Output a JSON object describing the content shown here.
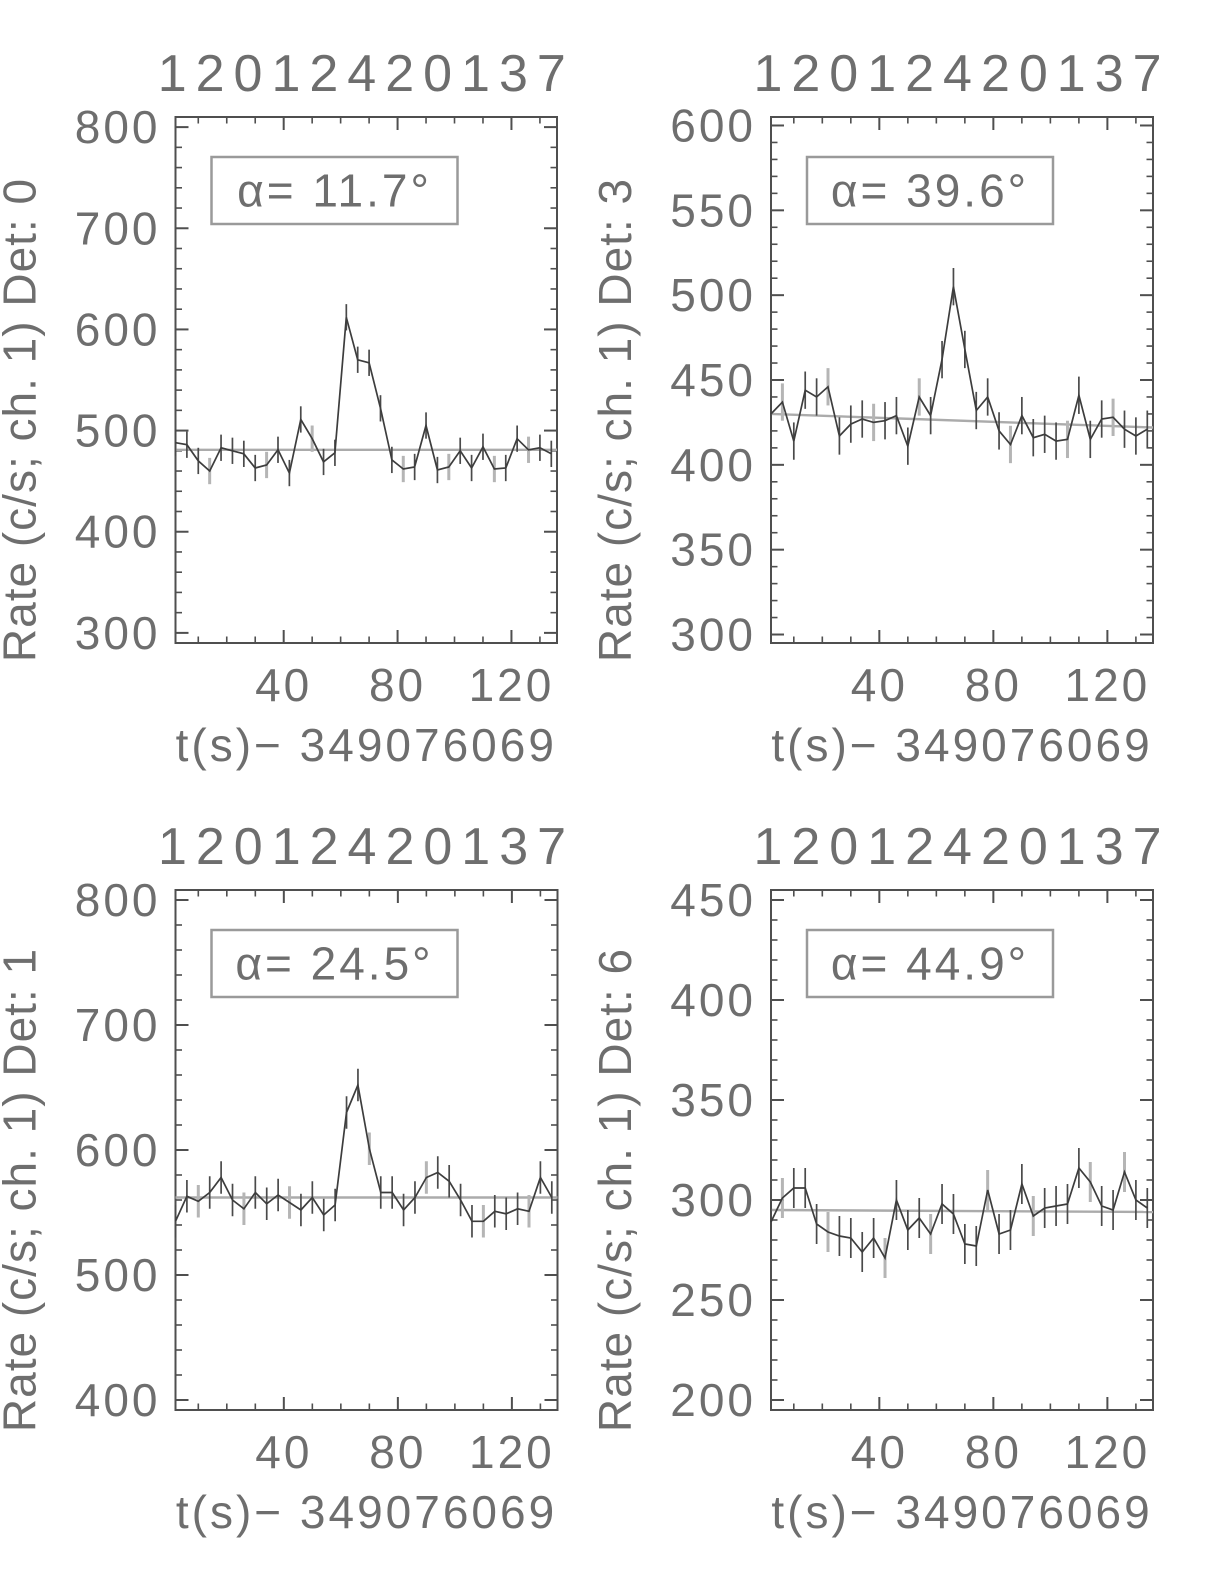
{
  "figure": {
    "background": "#ffffff",
    "description_colors": {
      "frame": "#4f4f4f",
      "tick": "#4f4f4f",
      "axis_text": "#6e6e6e",
      "title_text": "#747474",
      "data_line": "#3d3d3d",
      "error_bar": "#4a4a4a",
      "error_bar_gray": "#b5b5b5",
      "fit_line": "#ababab",
      "annotation_border": "#9a9a9a",
      "annotation_text": "#636363"
    }
  },
  "chart_data": [
    {
      "type": "line",
      "panel": "top-left",
      "title": "12012420137",
      "ylabel": "Rate (c/s; ch. 1) Det: 0",
      "xlabel": "t(s)−  349076069",
      "annotation": "α=  11.7°",
      "xlim": [
        2,
        136
      ],
      "ylim": [
        290,
        810
      ],
      "xticks": [
        40,
        80,
        120
      ],
      "xtick_labels": [
        "40",
        "80",
        "120"
      ],
      "yticks": [
        300,
        400,
        500,
        600,
        700,
        800
      ],
      "ytick_labels": [
        "300",
        "400",
        "500",
        "600",
        "700",
        "800"
      ],
      "x_minor_step": 10,
      "y_minor_step": 20,
      "grid": false,
      "x": [
        2,
        6,
        10,
        14,
        18,
        22,
        26,
        30,
        34,
        38,
        42,
        46,
        50,
        54,
        58,
        62,
        66,
        70,
        74,
        78,
        82,
        86,
        90,
        94,
        98,
        102,
        106,
        110,
        114,
        118,
        122,
        126,
        130,
        134
      ],
      "y": [
        488,
        486,
        470,
        460,
        483,
        480,
        477,
        463,
        466,
        481,
        458,
        511,
        492,
        469,
        478,
        612,
        570,
        567,
        522,
        471,
        462,
        464,
        505,
        461,
        464,
        480,
        463,
        484,
        462,
        463,
        492,
        481,
        483,
        477
      ],
      "yerr": 13,
      "gray_err_idx": [
        3,
        8,
        12,
        20,
        24,
        28,
        31
      ],
      "fit_line": {
        "x": [
          2,
          136
        ],
        "y": [
          481,
          481
        ]
      }
    },
    {
      "type": "line",
      "panel": "top-right",
      "title": "12012420137",
      "ylabel": "Rate (c/s; ch. 1) Det: 3",
      "xlabel": "t(s)−  349076069",
      "annotation": "α=  39.6°",
      "xlim": [
        2,
        136
      ],
      "ylim": [
        295,
        605
      ],
      "xticks": [
        40,
        80,
        120
      ],
      "xtick_labels": [
        "40",
        "80",
        "120"
      ],
      "yticks": [
        300,
        350,
        400,
        450,
        500,
        550,
        600
      ],
      "ytick_labels": [
        "300",
        "350",
        "400",
        "450",
        "500",
        "550",
        "600"
      ],
      "x_minor_step": 10,
      "y_minor_step": 10,
      "grid": false,
      "x": [
        2,
        6,
        10,
        14,
        18,
        22,
        26,
        30,
        34,
        38,
        42,
        46,
        50,
        54,
        58,
        62,
        66,
        70,
        74,
        78,
        82,
        86,
        90,
        94,
        98,
        102,
        106,
        110,
        114,
        118,
        122,
        126,
        130,
        134
      ],
      "y": [
        430,
        437,
        414,
        444,
        440,
        446,
        417,
        424,
        427,
        425,
        426,
        429,
        411,
        440,
        429,
        462,
        505,
        468,
        432,
        440,
        420,
        412,
        429,
        416,
        418,
        414,
        415,
        441,
        415,
        427,
        428,
        421,
        417,
        421
      ],
      "yerr": 11,
      "gray_err_idx": [
        1,
        5,
        9,
        13,
        21,
        26,
        30
      ],
      "fit_line": {
        "x": [
          2,
          136
        ],
        "y": [
          430,
          422
        ]
      }
    },
    {
      "type": "line",
      "panel": "bottom-left",
      "title": "12012420137",
      "ylabel": "Rate (c/s; ch. 1) Det: 1",
      "xlabel": "t(s)−  349076069",
      "annotation": "α=  24.5°",
      "xlim": [
        2,
        136
      ],
      "ylim": [
        392,
        808
      ],
      "xticks": [
        40,
        80,
        120
      ],
      "xtick_labels": [
        "40",
        "80",
        "120"
      ],
      "yticks": [
        400,
        500,
        600,
        700,
        800
      ],
      "ytick_labels": [
        "400",
        "500",
        "600",
        "700",
        "800"
      ],
      "x_minor_step": 10,
      "y_minor_step": 20,
      "grid": false,
      "x": [
        2,
        6,
        10,
        14,
        18,
        22,
        26,
        30,
        34,
        38,
        42,
        46,
        50,
        54,
        58,
        62,
        66,
        70,
        74,
        78,
        82,
        86,
        90,
        94,
        98,
        102,
        106,
        110,
        114,
        118,
        122,
        126,
        130,
        134
      ],
      "y": [
        543,
        563,
        559,
        566,
        578,
        560,
        553,
        566,
        557,
        564,
        558,
        552,
        562,
        548,
        556,
        630,
        652,
        601,
        566,
        566,
        552,
        562,
        578,
        582,
        575,
        560,
        543,
        543,
        551,
        549,
        553,
        551,
        578,
        562
      ],
      "yerr": 13,
      "gray_err_idx": [
        2,
        6,
        10,
        17,
        22,
        27,
        31
      ],
      "fit_line": {
        "x": [
          2,
          136
        ],
        "y": [
          562,
          562
        ]
      }
    },
    {
      "type": "line",
      "panel": "bottom-right",
      "title": "12012420137",
      "ylabel": "Rate (c/s; ch. 1) Det: 6",
      "xlabel": "t(s)−  349076069",
      "annotation": "α=  44.9°",
      "xlim": [
        2,
        136
      ],
      "ylim": [
        195,
        455
      ],
      "xticks": [
        40,
        80,
        120
      ],
      "xtick_labels": [
        "40",
        "80",
        "120"
      ],
      "yticks": [
        200,
        250,
        300,
        350,
        400,
        450
      ],
      "ytick_labels": [
        "200",
        "250",
        "300",
        "350",
        "400",
        "450"
      ],
      "x_minor_step": 10,
      "y_minor_step": 10,
      "grid": false,
      "x": [
        2,
        6,
        10,
        14,
        18,
        22,
        26,
        30,
        34,
        38,
        42,
        46,
        50,
        54,
        58,
        62,
        66,
        70,
        74,
        78,
        82,
        86,
        90,
        94,
        98,
        102,
        106,
        110,
        114,
        118,
        122,
        126,
        130,
        134
      ],
      "y": [
        289,
        301,
        306,
        306,
        288,
        284,
        282,
        281,
        274,
        281,
        271,
        300,
        285,
        291,
        283,
        298,
        293,
        278,
        277,
        305,
        283,
        285,
        308,
        292,
        296,
        297,
        298,
        316,
        309,
        297,
        295,
        314,
        300,
        296
      ],
      "yerr": 10,
      "gray_err_idx": [
        1,
        5,
        10,
        14,
        19,
        23,
        28,
        31
      ],
      "fit_line": {
        "x": [
          2,
          136
        ],
        "y": [
          295,
          294
        ]
      }
    }
  ]
}
